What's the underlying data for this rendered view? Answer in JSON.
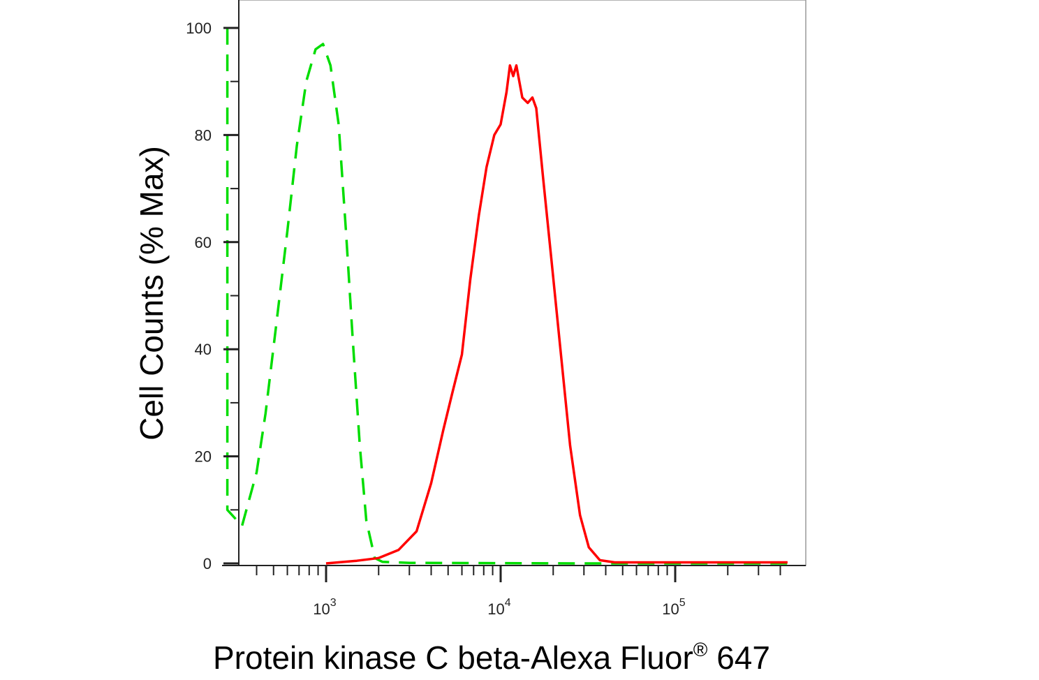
{
  "chart_data": {
    "type": "line",
    "xlabel": "Protein kinase C beta-Alexa Fluor",
    "xlabel_super": "®",
    "xlabel_suffix": " 647",
    "ylabel": "Cell Counts (% Max)",
    "x_scale": "log",
    "xlim": [
      270,
      450000
    ],
    "ylim": [
      0,
      105
    ],
    "y_ticks": [
      0,
      20,
      40,
      60,
      80,
      100
    ],
    "y_tick_labels": [
      "0",
      "20",
      "40",
      "60",
      "80",
      "100"
    ],
    "x_ticks": [
      1000,
      10000,
      100000
    ],
    "x_tick_bases": [
      "10",
      "10",
      "10"
    ],
    "x_tick_exponents": [
      "3",
      "4",
      "5"
    ],
    "grid": false,
    "legend": "none",
    "series": [
      {
        "color": "#00dd00",
        "style": "dashed",
        "points": [
          [
            272,
            100
          ],
          [
            272,
            10
          ],
          [
            330,
            7
          ],
          [
            400,
            17
          ],
          [
            450,
            28
          ],
          [
            520,
            45
          ],
          [
            600,
            62
          ],
          [
            680,
            78
          ],
          [
            770,
            90
          ],
          [
            870,
            96
          ],
          [
            960,
            97
          ],
          [
            1060,
            93
          ],
          [
            1180,
            82
          ],
          [
            1300,
            62
          ],
          [
            1420,
            42
          ],
          [
            1560,
            22
          ],
          [
            1700,
            8
          ],
          [
            1900,
            1
          ],
          [
            2100,
            0.3
          ],
          [
            3000,
            0.1
          ],
          [
            30000,
            0
          ],
          [
            440000,
            0
          ]
        ]
      },
      {
        "color": "#ff0000",
        "style": "solid",
        "points": [
          [
            1000,
            0
          ],
          [
            1500,
            0.5
          ],
          [
            2000,
            1
          ],
          [
            2600,
            2.5
          ],
          [
            3300,
            6
          ],
          [
            4000,
            15
          ],
          [
            4700,
            25
          ],
          [
            5300,
            32
          ],
          [
            6000,
            39
          ],
          [
            6700,
            53
          ],
          [
            7500,
            65
          ],
          [
            8300,
            74
          ],
          [
            9200,
            80
          ],
          [
            10000,
            82
          ],
          [
            10800,
            88
          ],
          [
            11300,
            93
          ],
          [
            11800,
            91
          ],
          [
            12300,
            93
          ],
          [
            13300,
            87
          ],
          [
            14300,
            86
          ],
          [
            15200,
            87
          ],
          [
            16000,
            85
          ],
          [
            17500,
            72
          ],
          [
            19500,
            57
          ],
          [
            22000,
            40
          ],
          [
            25000,
            22
          ],
          [
            28500,
            9
          ],
          [
            32000,
            3
          ],
          [
            37000,
            0.6
          ],
          [
            45000,
            0.2
          ],
          [
            100000,
            0.2
          ],
          [
            440000,
            0.2
          ]
        ]
      }
    ]
  }
}
